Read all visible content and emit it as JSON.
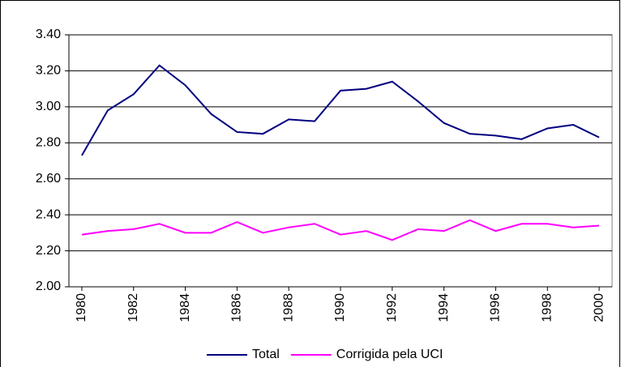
{
  "chart_data": {
    "type": "line",
    "x": [
      1980,
      1981,
      1982,
      1983,
      1984,
      1985,
      1986,
      1987,
      1988,
      1989,
      1990,
      1991,
      1992,
      1993,
      1994,
      1995,
      1996,
      1997,
      1998,
      1999,
      2000
    ],
    "series": [
      {
        "name": "Total",
        "color": "#000080",
        "values": [
          2.73,
          2.98,
          3.07,
          3.23,
          3.12,
          2.96,
          2.86,
          2.85,
          2.93,
          2.92,
          3.09,
          3.1,
          3.14,
          3.03,
          2.91,
          2.85,
          2.84,
          2.82,
          2.88,
          2.9,
          2.83
        ]
      },
      {
        "name": "Corrigida pela UCI",
        "color": "#ff00ff",
        "values": [
          2.29,
          2.31,
          2.32,
          2.35,
          2.3,
          2.3,
          2.36,
          2.3,
          2.33,
          2.35,
          2.29,
          2.31,
          2.26,
          2.32,
          2.31,
          2.37,
          2.31,
          2.35,
          2.35,
          2.33,
          2.34
        ]
      }
    ],
    "xlim": [
      1979.5,
      2000.5
    ],
    "xticks": [
      1980,
      1982,
      1984,
      1986,
      1988,
      1990,
      1992,
      1994,
      1996,
      1998,
      2000
    ],
    "ylim": [
      2.0,
      3.4
    ],
    "yticks": [
      {
        "value": 2.0,
        "label": "2.00"
      },
      {
        "value": 2.2,
        "label": "2.20"
      },
      {
        "value": 2.4,
        "label": "2.40"
      },
      {
        "value": 2.6,
        "label": "2.60"
      },
      {
        "value": 2.8,
        "label": "2.80"
      },
      {
        "value": 3.0,
        "label": "3.00"
      },
      {
        "value": 3.2,
        "label": "3.20"
      },
      {
        "value": 3.4,
        "label": "3.40"
      }
    ],
    "grid": true,
    "legend": "bottom"
  }
}
